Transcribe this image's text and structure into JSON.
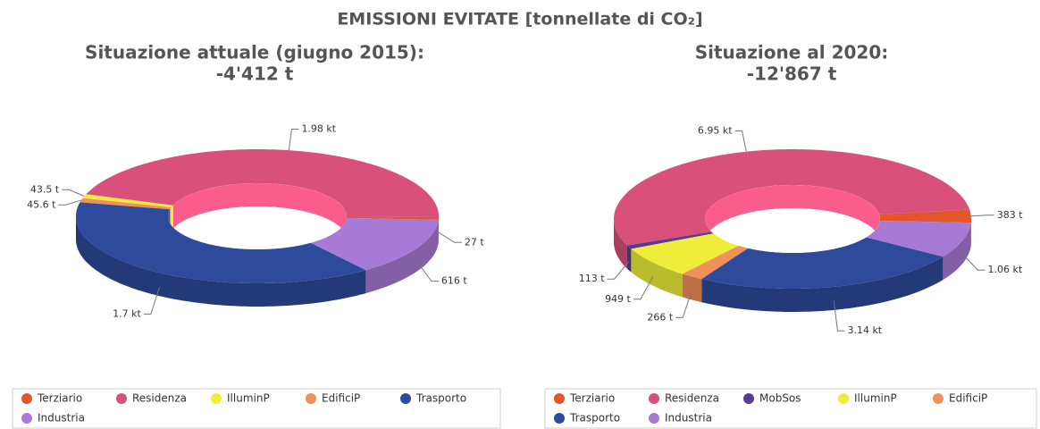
{
  "title": "EMISSIONI EVITATE [tonnellate di CO₂]",
  "chart_data": [
    {
      "type": "pie",
      "donut": true,
      "title": "Situazione attuale (giugno 2015):",
      "subtitle": "-4'412 t",
      "categories": [
        "Terziario",
        "Residenza",
        "IlluminP",
        "EdificiP",
        "Trasporto",
        "Industria"
      ],
      "values": [
        27,
        1980,
        43.5,
        45.6,
        1700,
        616
      ],
      "value_labels": [
        "27 t",
        "1.98 kt",
        "43.5 t",
        "45.6 t",
        "1.7 kt",
        "616 t"
      ],
      "colors": [
        "#e2562a",
        "#d9507a",
        "#eeee3a",
        "#f0905a",
        "#2e4a9a",
        "#a87ad8"
      ],
      "legend": "bottom"
    },
    {
      "type": "pie",
      "donut": true,
      "title": "Situazione al 2020:",
      "subtitle": "-12'867 t",
      "categories": [
        "Terziario",
        "Residenza",
        "MobSos",
        "IlluminP",
        "EdificiP",
        "Trasporto",
        "Industria"
      ],
      "values": [
        383,
        6950,
        113,
        949,
        266,
        3140,
        1060
      ],
      "value_labels": [
        "383 t",
        "6.95 kt",
        "113 t",
        "949 t",
        "266 t",
        "3.14 kt",
        "1.06 kt"
      ],
      "colors": [
        "#e2562a",
        "#d9507a",
        "#5b3c8c",
        "#eeee3a",
        "#f0905a",
        "#2e4a9a",
        "#a87ad8"
      ],
      "legend": "bottom"
    }
  ]
}
